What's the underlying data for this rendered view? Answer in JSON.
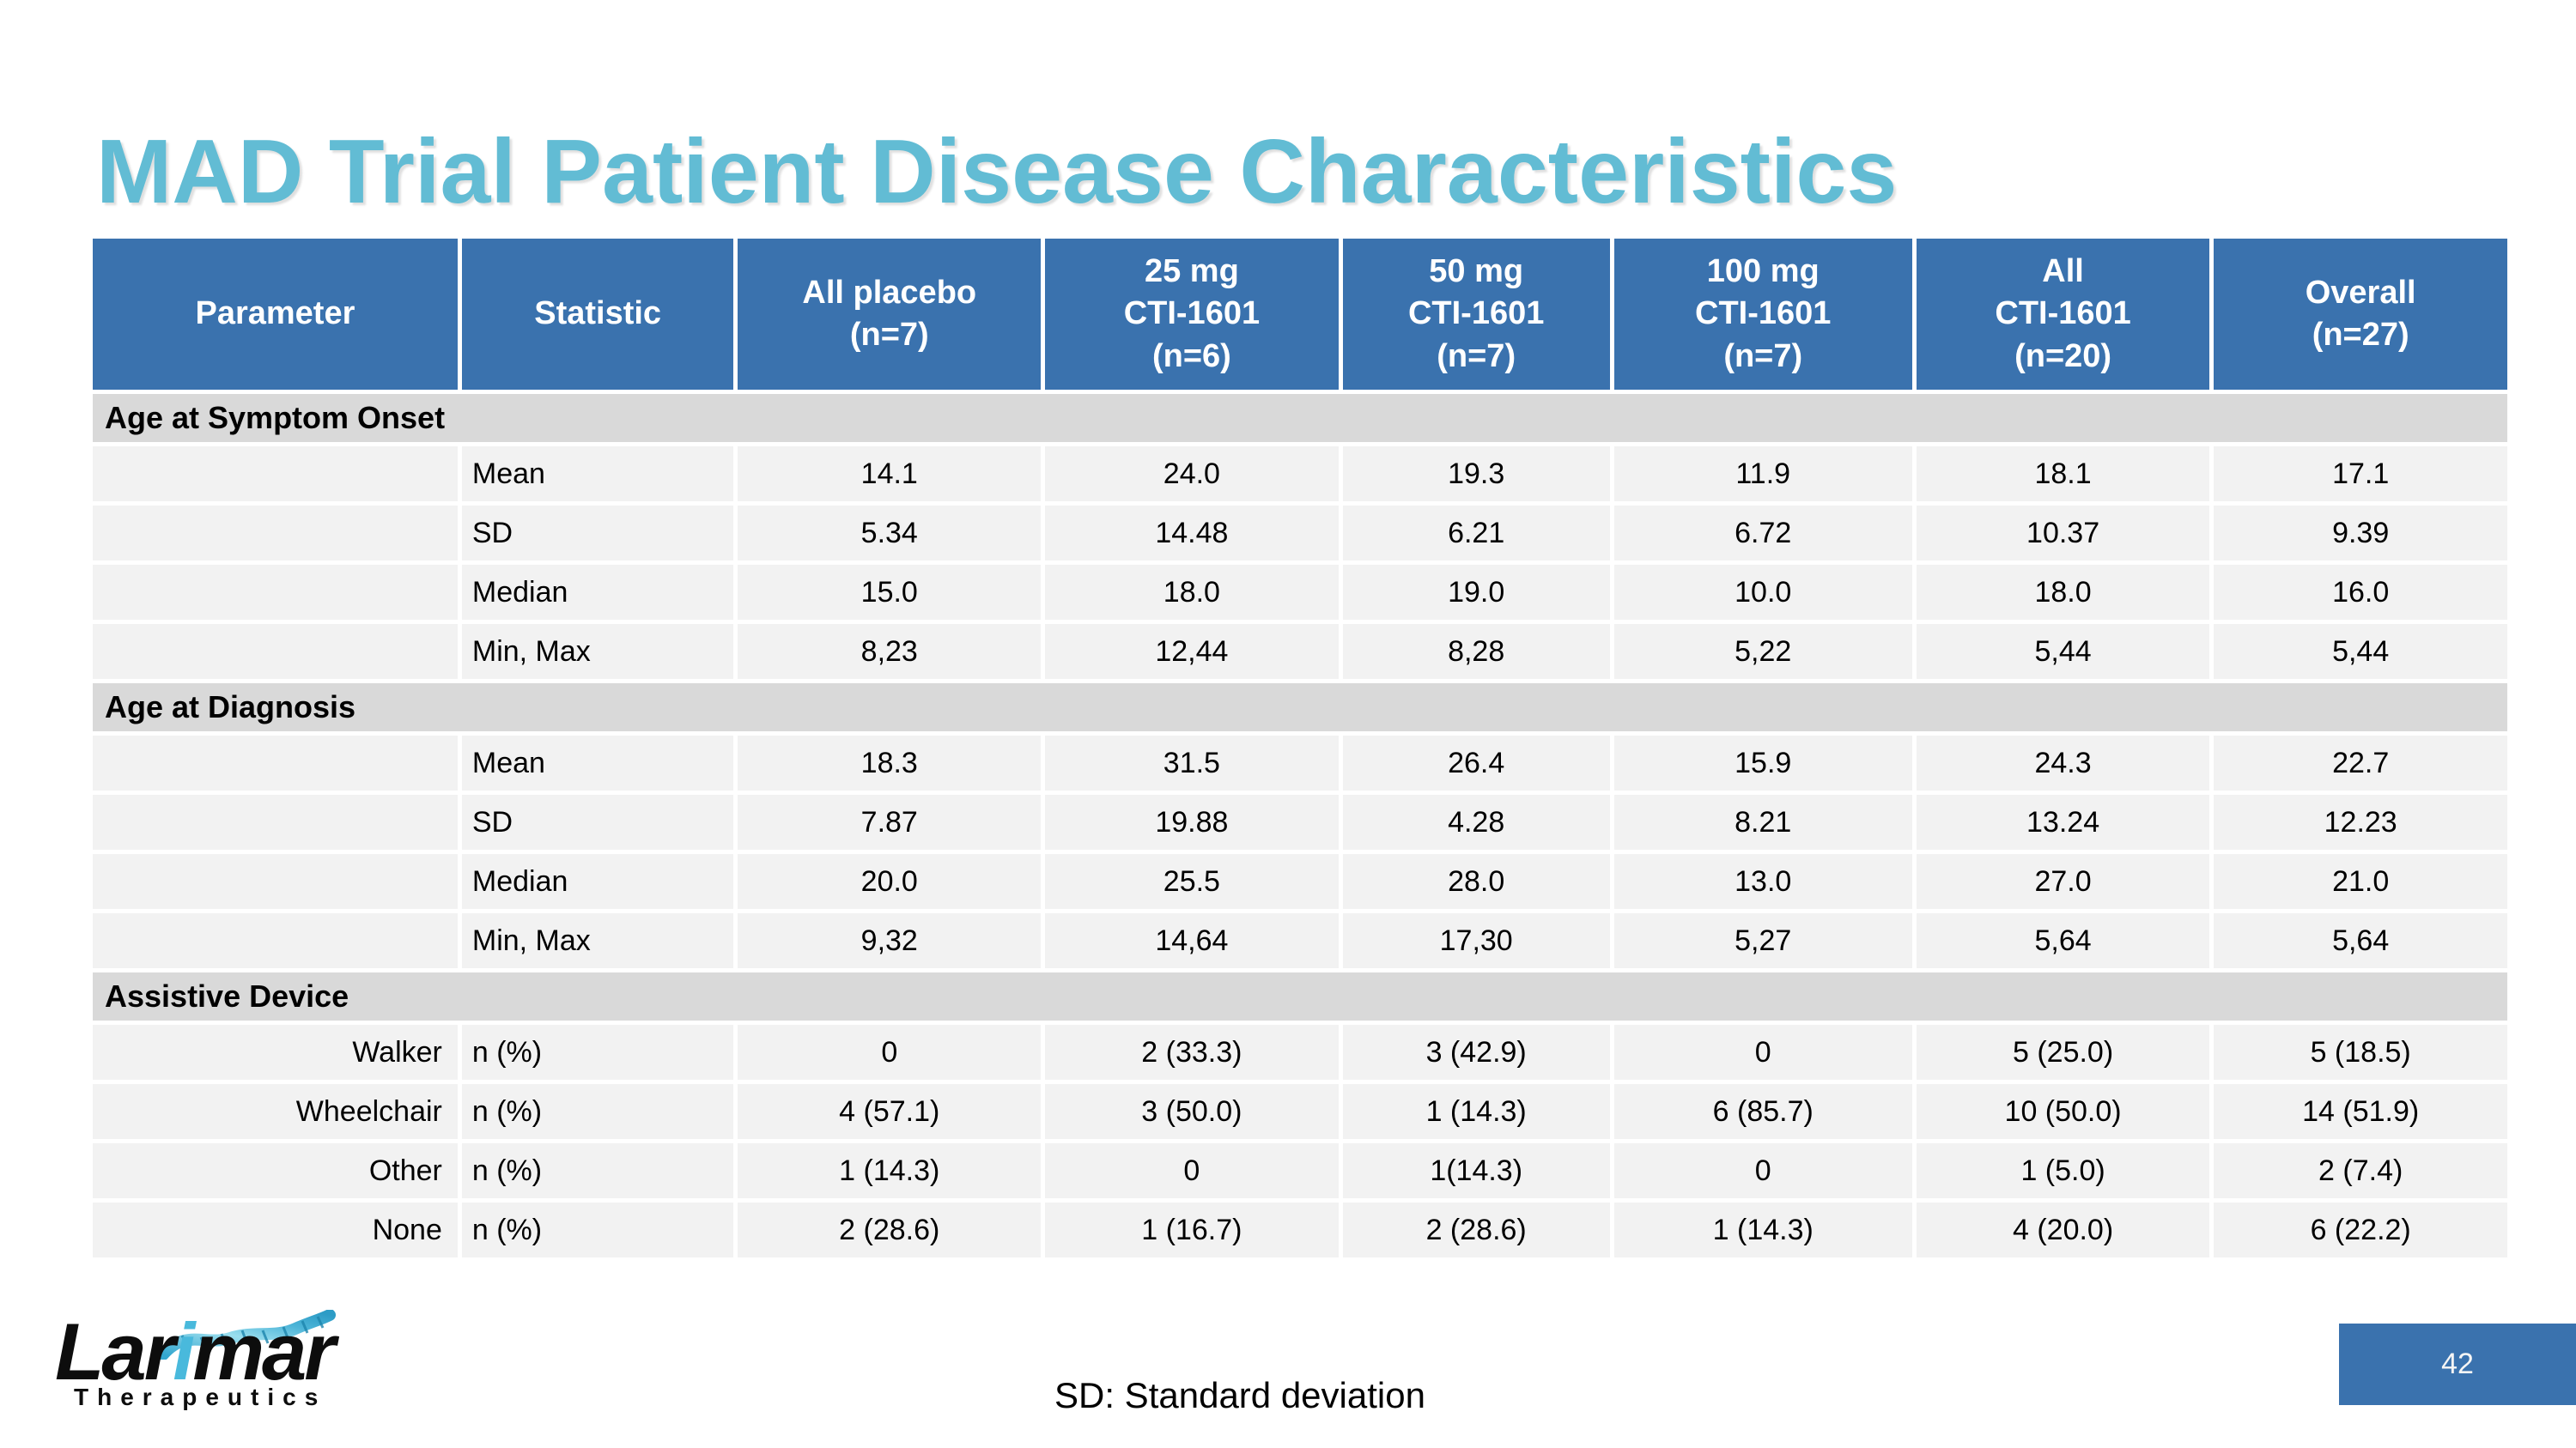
{
  "title": "MAD Trial Patient Disease Characteristics",
  "colors": {
    "title_teal": "#62bcd4",
    "header_blue": "#3a72ae",
    "section_gray": "#d9d9d9",
    "row_gray": "#f2f2f2",
    "logo_cyan": "#49b9dc"
  },
  "table": {
    "columns": [
      "Parameter",
      "Statistic",
      "All placebo\n(n=7)",
      "25 mg\nCTI-1601\n(n=6)",
      "50 mg\nCTI-1601\n(n=7)",
      "100 mg\nCTI-1601\n(n=7)",
      "All\nCTI-1601\n(n=20)",
      "Overall\n(n=27)"
    ],
    "sections": [
      {
        "label": "Age at Symptom Onset",
        "rows": [
          [
            "",
            "Mean",
            "14.1",
            "24.0",
            "19.3",
            "11.9",
            "18.1",
            "17.1"
          ],
          [
            "",
            "SD",
            "5.34",
            "14.48",
            "6.21",
            "6.72",
            "10.37",
            "9.39"
          ],
          [
            "",
            "Median",
            "15.0",
            "18.0",
            "19.0",
            "10.0",
            "18.0",
            "16.0"
          ],
          [
            "",
            "Min, Max",
            "8,23",
            "12,44",
            "8,28",
            "5,22",
            "5,44",
            "5,44"
          ]
        ]
      },
      {
        "label": "Age at Diagnosis",
        "rows": [
          [
            "",
            "Mean",
            "18.3",
            "31.5",
            "26.4",
            "15.9",
            "24.3",
            "22.7"
          ],
          [
            "",
            "SD",
            "7.87",
            "19.88",
            "4.28",
            "8.21",
            "13.24",
            "12.23"
          ],
          [
            "",
            "Median",
            "20.0",
            "25.5",
            "28.0",
            "13.0",
            "27.0",
            "21.0"
          ],
          [
            "",
            "Min, Max",
            "9,32",
            "14,64",
            "17,30",
            "5,27",
            "5,64",
            "5,64"
          ]
        ]
      },
      {
        "label": "Assistive Device",
        "rows": [
          [
            "Walker",
            "n (%)",
            "0",
            "2 (33.3)",
            "3 (42.9)",
            "0",
            "5 (25.0)",
            "5 (18.5)"
          ],
          [
            "Wheelchair",
            "n (%)",
            "4 (57.1)",
            "3 (50.0)",
            "1 (14.3)",
            "6 (85.7)",
            "10 (50.0)",
            "14 (51.9)"
          ],
          [
            "Other",
            "n (%)",
            "1 (14.3)",
            "0",
            "1(14.3)",
            "0",
            "1 (5.0)",
            "2 (7.4)"
          ],
          [
            "None",
            "n (%)",
            "2 (28.6)",
            "1 (16.7)",
            "2 (28.6)",
            "1 (14.3)",
            "4 (20.0)",
            "6 (22.2)"
          ]
        ]
      }
    ]
  },
  "logo": {
    "brand_lar": "Lar",
    "brand_i": "i",
    "brand_mar": "mar",
    "subtitle": "Therapeutics"
  },
  "footer": {
    "abbreviation_note": "SD: Standard deviation",
    "page_number": "42"
  }
}
